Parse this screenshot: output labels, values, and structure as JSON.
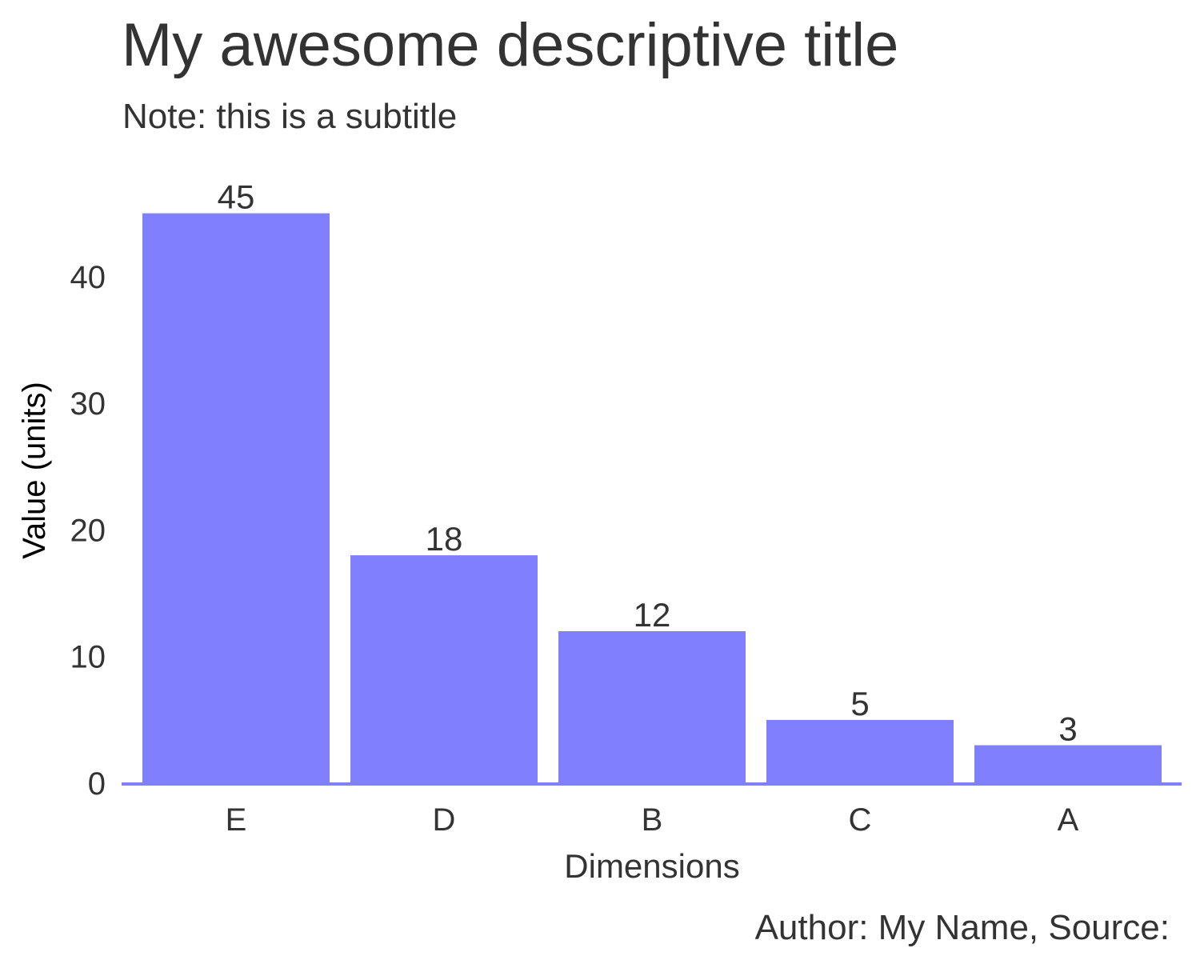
{
  "chart_data": {
    "type": "bar",
    "title": "My awesome descriptive title",
    "subtitle": "Note: this is a subtitle",
    "xlabel": "Dimensions",
    "ylabel": "Value (units)",
    "caption": "Author: My Name, Source:",
    "categories": [
      "E",
      "D",
      "B",
      "C",
      "A"
    ],
    "values": [
      45,
      18,
      12,
      5,
      3
    ],
    "data_labels": [
      "45",
      "18",
      "12",
      "5",
      "3"
    ],
    "ylim": [
      0,
      45
    ],
    "yticks": [
      0,
      10,
      20,
      30,
      40
    ],
    "ytick_labels": [
      "0",
      "10",
      "20",
      "30",
      "40"
    ],
    "grid": false,
    "legend": "none",
    "colors": {
      "bar": "#8080ff",
      "axis_line": "#8080ff",
      "text": "#333333"
    }
  }
}
